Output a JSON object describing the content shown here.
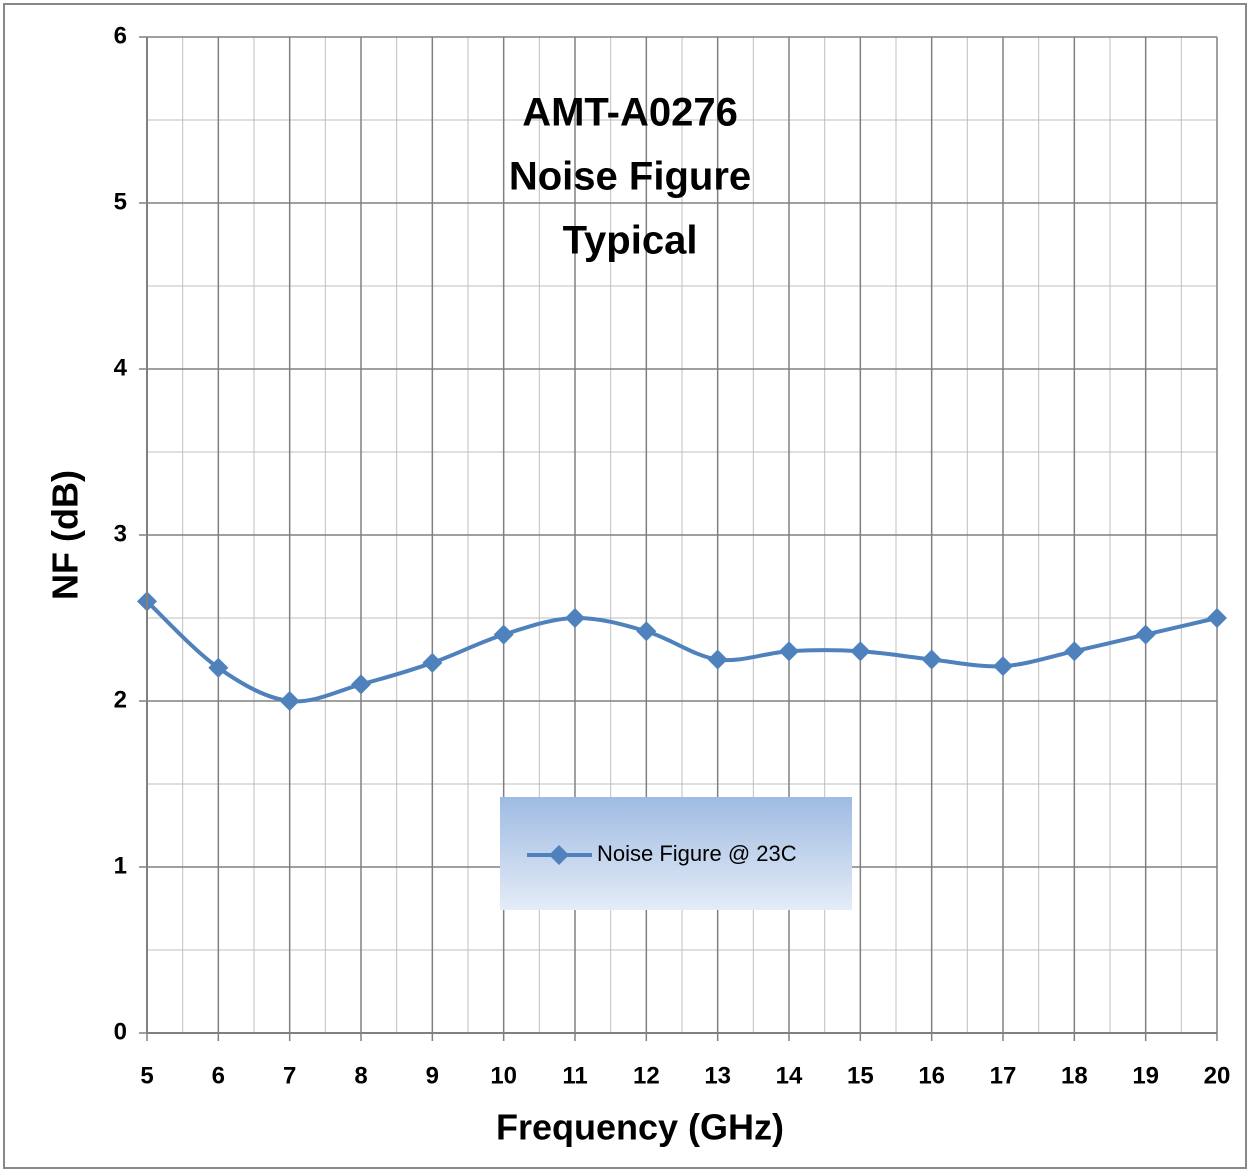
{
  "chart_data": {
    "type": "line",
    "title": [
      "AMT-A0276",
      "Noise Figure",
      "Typical"
    ],
    "x_label": "Frequency (GHz)",
    "y_label": "NF  (dB)",
    "series": [
      {
        "name": "Noise Figure @ 23C",
        "color": "#4f81bd",
        "x": [
          5,
          6,
          7,
          8,
          9,
          10,
          11,
          12,
          13,
          14,
          15,
          16,
          17,
          18,
          19,
          20
        ],
        "values": [
          2.6,
          2.2,
          2.0,
          2.1,
          2.23,
          2.4,
          2.5,
          2.42,
          2.25,
          2.3,
          2.3,
          2.25,
          2.21,
          2.3,
          2.4,
          2.5
        ]
      }
    ],
    "xlim": [
      5,
      20
    ],
    "xticks": [
      5,
      6,
      7,
      8,
      9,
      10,
      11,
      12,
      13,
      14,
      15,
      16,
      17,
      18,
      19,
      20
    ],
    "ylim": [
      0,
      6
    ],
    "yticks": [
      0,
      1,
      2,
      3,
      4,
      5,
      6
    ],
    "grid": true,
    "minor_grid": true,
    "smooth": true,
    "marker": "diamond"
  }
}
